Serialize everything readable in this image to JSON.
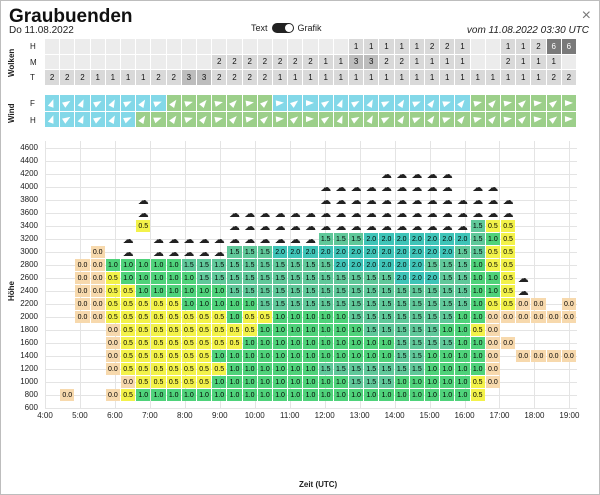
{
  "header": {
    "title": "Graubuenden",
    "date": "Do 11.08.2022",
    "valid": "vom 11.08.2022 03:30 UTC",
    "toggle_left": "Text",
    "toggle_right": "Grafik",
    "close": "×"
  },
  "clouds": {
    "panel_label": "Wolken",
    "row_labels": [
      "H",
      "M",
      "T"
    ],
    "H": [
      "",
      "",
      "",
      "",
      "",
      "",
      "",
      "",
      "",
      "",
      "",
      "",
      "",
      "",
      "",
      "",
      "",
      "",
      "",
      "",
      "1",
      "1",
      "1",
      "1",
      "1",
      "2",
      "2",
      "1",
      "",
      "",
      "1",
      "1",
      "2",
      "6",
      "6"
    ],
    "M": [
      "",
      "",
      "",
      "",
      "",
      "",
      "",
      "",
      "",
      "",
      "",
      "2",
      "2",
      "2",
      "2",
      "2",
      "2",
      "2",
      "1",
      "1",
      "3",
      "3",
      "2",
      "2",
      "1",
      "1",
      "1",
      "1",
      "",
      "",
      "2",
      "1",
      "1",
      "1",
      ""
    ],
    "T": [
      "2",
      "2",
      "2",
      "1",
      "1",
      "1",
      "1",
      "2",
      "2",
      "3",
      "3",
      "2",
      "2",
      "2",
      "2",
      "1",
      "1",
      "1",
      "1",
      "1",
      "1",
      "1",
      "1",
      "1",
      "1",
      "1",
      "1",
      "1",
      "1",
      "1",
      "1",
      "1",
      "1",
      "2",
      "2"
    ]
  },
  "wind": {
    "panel_label": "Wind",
    "row_labels": [
      "F",
      "H"
    ]
  },
  "profile": {
    "y_axis_title": "Höhe",
    "x_axis_title": "Zeit (UTC)",
    "y_ticks": [
      "4600",
      "4400",
      "4200",
      "4000",
      "3800",
      "3600",
      "3400",
      "3200",
      "3000",
      "2800",
      "2600",
      "2400",
      "2200",
      "2000",
      "1800",
      "1600",
      "1400",
      "1200",
      "1000",
      "800",
      "600"
    ],
    "x_ticks": [
      "4:00",
      "5:00",
      "6:00",
      "7:00",
      "8:00",
      "9:00",
      "10:00",
      "11:00",
      "12:00",
      "13:00",
      "14:00",
      "15:00",
      "16:00",
      "17:00",
      "18:00",
      "19:00"
    ],
    "value_rows": [
      {
        "alt": "3400",
        "values": [
          "",
          "",
          "",
          "",
          "",
          "",
          "0.5",
          "",
          "",
          "",
          "",
          "",
          "",
          "",
          "",
          "",
          "",
          "",
          "",
          "",
          "",
          "",
          "",
          "",
          "",
          "",
          "",
          "",
          "1.5",
          "0.5",
          "0.5",
          "",
          "",
          "",
          ""
        ]
      },
      {
        "alt": "3200",
        "values": [
          "",
          "",
          "",
          "",
          "",
          "",
          "",
          "",
          "",
          "",
          "",
          "",
          "",
          "",
          "",
          "",
          "",
          "",
          "1.5",
          "1.5",
          "1.5",
          "2.0",
          "2.0",
          "2.0",
          "2.0",
          "2.0",
          "2.0",
          "2.0",
          "1.5",
          "1.0",
          "0.5",
          "",
          "",
          "",
          ""
        ]
      },
      {
        "alt": "3000",
        "values": [
          "",
          "",
          "",
          "0.0",
          "",
          "",
          "",
          "",
          "",
          "",
          "",
          "",
          "1.5",
          "1.5",
          "1.5",
          "2.0",
          "2.0",
          "2.0",
          "2.0",
          "2.0",
          "2.0",
          "2.0",
          "2.0",
          "2.0",
          "2.0",
          "2.0",
          "2.0",
          "1.5",
          "1.5",
          "0.5",
          "0.5",
          "",
          "",
          "",
          ""
        ]
      },
      {
        "alt": "2800",
        "values": [
          "",
          "",
          "0.0",
          "0.0",
          "1.0",
          "1.0",
          "1.0",
          "1.0",
          "1.0",
          "1.5",
          "1.5",
          "1.5",
          "1.5",
          "1.5",
          "1.5",
          "1.5",
          "1.5",
          "1.5",
          "1.5",
          "2.0",
          "2.0",
          "2.0",
          "2.0",
          "2.0",
          "2.0",
          "1.5",
          "1.5",
          "1.5",
          "1.0",
          "0.5",
          "0.5",
          "",
          "",
          "",
          ""
        ]
      },
      {
        "alt": "2600",
        "values": [
          "",
          "",
          "0.0",
          "0.0",
          "0.5",
          "1.0",
          "1.0",
          "1.0",
          "1.0",
          "1.0",
          "1.5",
          "1.5",
          "1.5",
          "1.5",
          "1.5",
          "1.5",
          "1.5",
          "1.5",
          "1.5",
          "1.5",
          "1.5",
          "1.5",
          "1.5",
          "2.0",
          "2.0",
          "2.0",
          "1.5",
          "1.5",
          "1.0",
          "1.0",
          "0.5",
          "",
          "",
          "",
          ""
        ]
      },
      {
        "alt": "2400",
        "values": [
          "",
          "",
          "0.0",
          "0.0",
          "0.5",
          "0.5",
          "1.0",
          "1.0",
          "1.0",
          "1.0",
          "1.0",
          "1.0",
          "1.5",
          "1.5",
          "1.5",
          "1.5",
          "1.5",
          "1.5",
          "1.5",
          "1.5",
          "1.5",
          "1.5",
          "1.5",
          "1.5",
          "1.5",
          "1.5",
          "1.5",
          "1.5",
          "1.0",
          "1.0",
          "0.5",
          "",
          "",
          "",
          ""
        ]
      },
      {
        "alt": "2200",
        "values": [
          "",
          "",
          "0.0",
          "0.0",
          "0.5",
          "0.5",
          "0.5",
          "0.5",
          "0.5",
          "1.0",
          "1.0",
          "1.0",
          "1.0",
          "1.0",
          "1.5",
          "1.5",
          "1.5",
          "1.5",
          "1.5",
          "1.5",
          "1.5",
          "1.5",
          "1.5",
          "1.5",
          "1.5",
          "1.5",
          "1.5",
          "1.5",
          "1.0",
          "0.5",
          "0.5",
          "0.0",
          "0.0",
          "",
          "0.0"
        ]
      },
      {
        "alt": "2000",
        "values": [
          "",
          "",
          "0.0",
          "0.0",
          "0.5",
          "0.5",
          "0.5",
          "0.5",
          "0.5",
          "0.5",
          "0.5",
          "0.5",
          "1.0",
          "0.5",
          "0.5",
          "1.0",
          "1.0",
          "1.0",
          "1.0",
          "1.0",
          "1.5",
          "1.5",
          "1.5",
          "1.5",
          "1.5",
          "1.5",
          "1.5",
          "1.0",
          "1.0",
          "0.0",
          "0.0",
          "0.0",
          "0.0",
          "0.0",
          "0.0"
        ]
      },
      {
        "alt": "1800",
        "values": [
          "",
          "",
          "",
          "",
          "0.0",
          "0.5",
          "0.5",
          "0.5",
          "0.5",
          "0.5",
          "0.5",
          "0.5",
          "0.5",
          "0.5",
          "1.0",
          "1.0",
          "1.0",
          "1.0",
          "1.0",
          "1.0",
          "1.0",
          "1.5",
          "1.5",
          "1.5",
          "1.5",
          "1.5",
          "1.0",
          "1.0",
          "0.5",
          "0.0",
          "",
          "",
          "",
          "",
          ""
        ]
      },
      {
        "alt": "1600",
        "values": [
          "",
          "",
          "",
          "",
          "0.0",
          "0.5",
          "0.5",
          "0.5",
          "0.5",
          "0.5",
          "0.5",
          "0.5",
          "0.5",
          "1.0",
          "1.0",
          "1.0",
          "1.0",
          "1.0",
          "1.0",
          "1.0",
          "1.0",
          "1.0",
          "1.0",
          "1.5",
          "1.5",
          "1.5",
          "1.5",
          "1.0",
          "1.0",
          "0.0",
          "0.0",
          "",
          "",
          "",
          ""
        ]
      },
      {
        "alt": "1400",
        "values": [
          "",
          "",
          "",
          "",
          "0.0",
          "0.5",
          "0.5",
          "0.5",
          "0.5",
          "0.5",
          "0.5",
          "1.0",
          "1.0",
          "1.0",
          "1.0",
          "1.0",
          "1.0",
          "1.0",
          "1.0",
          "1.0",
          "1.0",
          "1.0",
          "1.0",
          "1.5",
          "1.5",
          "1.0",
          "1.0",
          "1.0",
          "1.0",
          "0.0",
          "",
          "0.0",
          "0.0",
          "0.0",
          "0.0"
        ]
      },
      {
        "alt": "1200",
        "values": [
          "",
          "",
          "",
          "",
          "0.0",
          "0.5",
          "0.5",
          "0.5",
          "0.5",
          "0.5",
          "0.5",
          "0.5",
          "1.0",
          "1.0",
          "1.0",
          "1.0",
          "1.0",
          "1.0",
          "1.5",
          "1.5",
          "1.5",
          "1.5",
          "1.5",
          "1.5",
          "1.5",
          "1.0",
          "1.0",
          "1.0",
          "1.0",
          "0.0",
          "",
          "",
          "",
          "",
          ""
        ]
      },
      {
        "alt": "1000",
        "values": [
          "",
          "",
          "",
          "",
          "",
          "0.0",
          "0.5",
          "0.5",
          "0.5",
          "0.5",
          "0.5",
          "1.0",
          "1.0",
          "1.0",
          "1.0",
          "1.0",
          "1.0",
          "1.0",
          "1.0",
          "1.0",
          "1.5",
          "1.5",
          "1.5",
          "1.0",
          "1.0",
          "1.0",
          "1.0",
          "1.0",
          "0.5",
          "0.0",
          "",
          "",
          "",
          "",
          ""
        ]
      },
      {
        "alt": "800",
        "values": [
          "",
          "0.0",
          "",
          "",
          "0.0",
          "0.5",
          "1.0",
          "1.0",
          "1.0",
          "1.0",
          "1.0",
          "1.0",
          "1.0",
          "1.0",
          "1.0",
          "1.0",
          "1.0",
          "1.0",
          "1.0",
          "1.0",
          "1.0",
          "1.0",
          "1.0",
          "1.0",
          "1.0",
          "1.0",
          "1.0",
          "1.0",
          "0.5",
          "",
          "",
          "",
          "",
          "",
          ""
        ]
      }
    ]
  },
  "colors": {
    "v00": "#f7d9ad",
    "v05": "#f3f24a",
    "v10": "#4fd27a",
    "v15": "#60c89a",
    "v20": "#3fc4b8",
    "cloud_lo": "#d9d9d9",
    "cloud_mid": "#bdbdbd",
    "cloud_hi": "#7a7a7a",
    "wind_a": "#83d8e8",
    "wind_b": "#9ccf8a"
  }
}
